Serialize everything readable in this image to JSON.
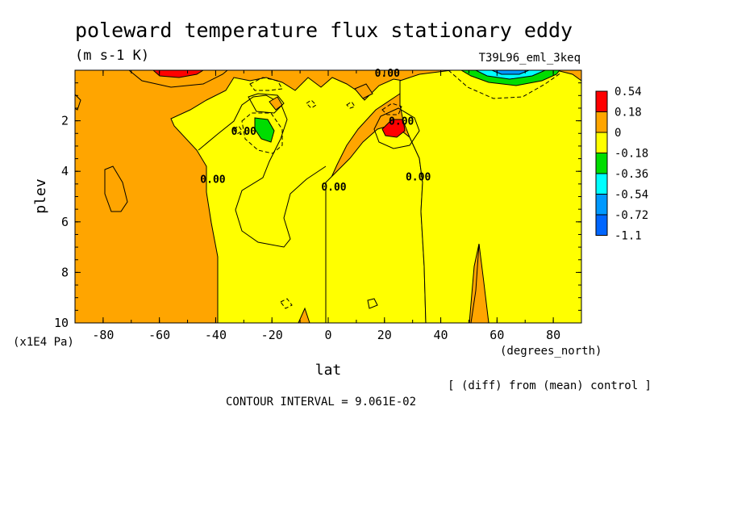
{
  "chart_data": {
    "type": "contour",
    "title": "poleward temperature flux stationary eddy",
    "units": "(m s-1 K)",
    "experiment": "T39L96_eml_3keq",
    "xlabel": "lat",
    "xunits": "(degrees_north)",
    "ylabel": "plev",
    "yunits": "(x1E4 Pa)",
    "note": "[ (diff) from (mean) control ]",
    "contour_interval_text": "CONTOUR INTERVAL = 9.061E-02",
    "xlim": [
      -90,
      90
    ],
    "ylim": [
      10,
      0
    ],
    "x_ticks": [
      -80,
      -60,
      -40,
      -20,
      0,
      20,
      40,
      60,
      80
    ],
    "y_ticks": [
      2,
      4,
      6,
      8,
      10
    ],
    "levels": [
      "0.54",
      "0.18",
      "0",
      "-0.18",
      "-0.36",
      "-0.54",
      "-0.72",
      "-1.1"
    ],
    "colors": [
      "#ff0000",
      "#ffa500",
      "#ffff00",
      "#00dd00",
      "#00ffff",
      "#0099ff",
      "#0066ff"
    ],
    "contour_labels": [
      {
        "text": "0.00",
        "lat": 21,
        "plev": 0.1
      },
      {
        "text": "0.00",
        "lat": -30,
        "plev": 2.4
      },
      {
        "text": "0.00",
        "lat": 26,
        "plev": 2.0
      },
      {
        "text": "0.00",
        "lat": -41,
        "plev": 4.3
      },
      {
        "text": "0.00",
        "lat": 2,
        "plev": 4.6
      },
      {
        "text": "0.00",
        "lat": 32,
        "plev": 4.2
      }
    ],
    "features": [
      {
        "kind": "max",
        "lat": -55,
        "plev": 0.1,
        "level_min": 0.18
      },
      {
        "kind": "max",
        "lat": 23,
        "plev": 2.5,
        "level_min": 0.18
      },
      {
        "kind": "min",
        "lat": -22,
        "plev": 2.4,
        "level_max": -0.18
      },
      {
        "kind": "min",
        "lat": 65,
        "plev": 0.2,
        "level_max": -0.18
      },
      {
        "kind": "min",
        "lat": 60,
        "plev": 0.1,
        "level_max": -0.54
      }
    ]
  }
}
